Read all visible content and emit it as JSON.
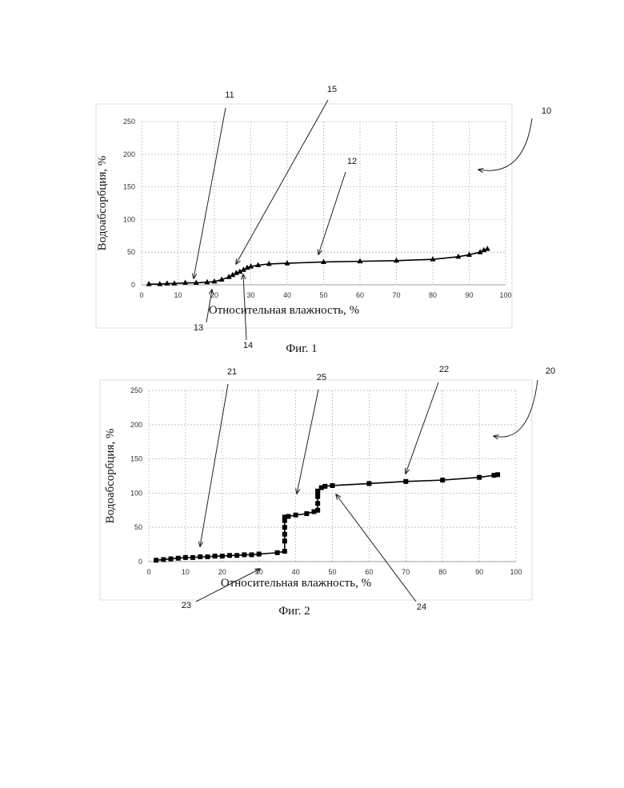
{
  "chart_data": [
    {
      "type": "line",
      "marker": "triangle",
      "color": "#000000",
      "grid": true,
      "x_label": "Относительная влажность, %",
      "y_label": "Водоабсорбция, %",
      "caption": "Фиг. 1",
      "xlim": [
        0,
        100
      ],
      "xticks": [
        0,
        10,
        20,
        30,
        40,
        50,
        60,
        70,
        80,
        90,
        100
      ],
      "ylim": [
        0,
        250
      ],
      "yticks": [
        0,
        50,
        100,
        150,
        200,
        250
      ],
      "annotations": [
        "11",
        "15",
        "12",
        "10",
        "13",
        "14"
      ],
      "x": [
        2,
        5,
        7,
        9,
        12,
        15,
        18,
        20,
        22,
        24,
        25,
        26,
        27,
        28,
        29,
        30,
        32,
        35,
        40,
        50,
        60,
        70,
        80,
        87,
        90,
        93,
        94,
        95
      ],
      "values": [
        1,
        1,
        2,
        2,
        3,
        3,
        4,
        5,
        8,
        12,
        15,
        18,
        20,
        23,
        26,
        28,
        30,
        32,
        33,
        35,
        36,
        37,
        39,
        43,
        46,
        50,
        53,
        55
      ]
    },
    {
      "type": "line",
      "marker": "square",
      "color": "#000000",
      "grid": true,
      "x_label": "Относительная влажность, %",
      "y_label": "Водоабсорбция, %",
      "caption": "Фиг. 2",
      "xlim": [
        0,
        100
      ],
      "xticks": [
        0,
        10,
        20,
        30,
        40,
        50,
        60,
        70,
        80,
        90,
        100
      ],
      "ylim": [
        0,
        250
      ],
      "yticks": [
        0,
        50,
        100,
        150,
        200,
        250
      ],
      "annotations": [
        "21",
        "25",
        "22",
        "20",
        "23",
        "24"
      ],
      "x": [
        2,
        4,
        6,
        8,
        10,
        12,
        14,
        16,
        18,
        20,
        22,
        24,
        26,
        28,
        30,
        35,
        37,
        37,
        37,
        37,
        37,
        37,
        38,
        40,
        43,
        45,
        46,
        46,
        46,
        46,
        46,
        47,
        48,
        50,
        60,
        70,
        80,
        90,
        94,
        95
      ],
      "values": [
        2,
        3,
        4,
        5,
        6,
        6,
        7,
        7,
        8,
        8,
        9,
        9,
        10,
        10,
        11,
        13,
        15,
        30,
        40,
        50,
        60,
        65,
        66,
        68,
        70,
        73,
        75,
        85,
        95,
        100,
        103,
        108,
        110,
        111,
        114,
        117,
        119,
        123,
        126,
        127
      ]
    }
  ]
}
